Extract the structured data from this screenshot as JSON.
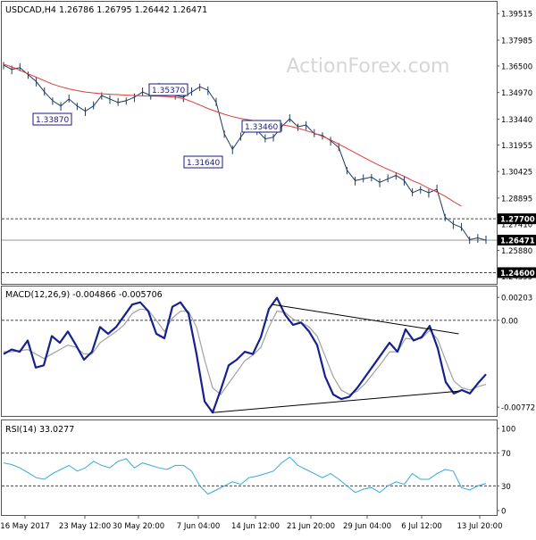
{
  "colors": {
    "price": "#1f3a5f",
    "ma": "#e03a3a",
    "macd": "#16218f",
    "signal": "#a0a0a0",
    "rsi": "#37a9df",
    "axis": "#666666",
    "grid": "#666666",
    "watermark": "#d6d6d6",
    "label_bg": "#ffffff"
  },
  "watermark": "ActionForex.com",
  "chart_data": [
    {
      "type": "line",
      "panel": "price",
      "title": "USDCAD,H4  1.26786 1.26795 1.26442 1.26471",
      "ylim": [
        1.23955,
        1.40195
      ],
      "y_ticks": [
        "1.39515",
        "1.37985",
        "1.36500",
        "1.34970",
        "1.33440",
        "1.31955",
        "1.30425",
        "1.28895",
        "1.27410",
        "1.25880",
        "1.24395"
      ],
      "x_ticks": [
        "16 May 2017",
        "23 May 12:00",
        "30 May 20:00",
        "7 Jun 04:00",
        "14 Jun 12:00",
        "21 Jun 20:00",
        "29 Jun 04:00",
        "6 Jul 12:00",
        "13 Jul 20:00"
      ],
      "last_price": "1.26471",
      "horizontal_levels": [
        {
          "value": 1.277,
          "label": "1.27700",
          "style": "dashed"
        },
        {
          "value": 1.246,
          "label": "1.24600",
          "style": "dashed"
        }
      ],
      "annotations": [
        {
          "text": "1.35370",
          "value": 1.3537
        },
        {
          "text": "1.33870",
          "value": 1.3387
        },
        {
          "text": "1.33460",
          "value": 1.3346
        },
        {
          "text": "1.31640",
          "value": 1.3164
        }
      ],
      "series": [
        {
          "values": [
            1.3655,
            1.363,
            1.364,
            1.36,
            1.356,
            1.35,
            1.345,
            1.342,
            1.346,
            1.342,
            1.339,
            1.342,
            1.348,
            1.346,
            1.344,
            1.345,
            1.347,
            1.35,
            1.348,
            1.353,
            1.351,
            1.348,
            1.347,
            1.35,
            1.353,
            1.351,
            1.344,
            1.326,
            1.317,
            1.324,
            1.33,
            1.328,
            1.323,
            1.324,
            1.33,
            1.3346,
            1.33,
            1.331,
            1.326,
            1.325,
            1.322,
            1.318,
            1.305,
            1.299,
            1.3,
            1.301,
            1.298,
            1.3,
            1.302,
            1.299,
            1.292,
            1.294,
            1.292,
            1.294,
            1.278,
            1.274,
            1.272,
            1.265,
            1.266,
            1.2647
          ]
        },
        {
          "values": [
            1.366,
            1.3645,
            1.3625,
            1.3605,
            1.3585,
            1.3565,
            1.3545,
            1.353,
            1.3518,
            1.3508,
            1.35,
            1.3495,
            1.349,
            1.3487,
            1.3485,
            1.3482,
            1.348,
            1.3478,
            1.3477,
            1.3476,
            1.3474,
            1.347,
            1.3462,
            1.3445,
            1.3425,
            1.3405,
            1.3388,
            1.3372,
            1.3358,
            1.3348,
            1.334,
            1.3333,
            1.3327,
            1.332,
            1.3312,
            1.3303,
            1.3292,
            1.3278,
            1.3263,
            1.3245,
            1.3224,
            1.32,
            1.3175,
            1.315,
            1.3125,
            1.31,
            1.3077,
            1.3055,
            1.3035,
            1.3015,
            1.299,
            1.297,
            1.2945,
            1.2925,
            1.29,
            1.287,
            1.2843
          ]
        }
      ]
    },
    {
      "type": "line",
      "panel": "macd",
      "title": "MACD(12,26,9) -0.004866 -0.005706",
      "ylim": [
        -0.0085,
        0.003
      ],
      "y_ticks": [
        "0.00203",
        "0.00",
        "-0.00772"
      ],
      "series": [
        {
          "values": [
            -0.003,
            -0.0026,
            -0.0028,
            -0.0018,
            -0.0042,
            -0.004,
            -0.0014,
            -0.002,
            -0.001,
            -0.0022,
            -0.0035,
            -0.0028,
            -0.0006,
            -0.0012,
            -0.0006,
            0.0004,
            0.0014,
            0.0016,
            0.0008,
            -0.0012,
            -0.0016,
            0.0012,
            0.0016,
            0.0006,
            -0.003,
            -0.0072,
            -0.0082,
            -0.0062,
            -0.004,
            -0.0035,
            -0.0028,
            -0.003,
            -0.0015,
            0.001,
            0.002,
            0.0005,
            -0.0004,
            -0.0002,
            -0.001,
            -0.0022,
            -0.005,
            -0.0066,
            -0.007,
            -0.0068,
            -0.006,
            -0.005,
            -0.004,
            -0.003,
            -0.002,
            -0.0028,
            -0.0008,
            -0.0018,
            -0.0015,
            -0.0005,
            -0.0025,
            -0.0055,
            -0.0065,
            -0.0062,
            -0.0065,
            -0.0056,
            -0.0048
          ]
        },
        {
          "values": [
            -0.0028,
            -0.0028,
            -0.0027,
            -0.0026,
            -0.003,
            -0.0034,
            -0.003,
            -0.0026,
            -0.0022,
            -0.0024,
            -0.003,
            -0.003,
            -0.002,
            -0.0015,
            -0.001,
            -0.0004,
            0.0006,
            0.001,
            0.0009,
            0.0,
            -0.001,
            0.0002,
            0.0008,
            0.0008,
            -0.0006,
            -0.0035,
            -0.006,
            -0.0066,
            -0.0056,
            -0.0046,
            -0.0036,
            -0.0031,
            -0.0024,
            -0.0006,
            0.0008,
            0.0007,
            0.0001,
            -0.0002,
            -0.0006,
            -0.0014,
            -0.0032,
            -0.005,
            -0.0062,
            -0.0066,
            -0.0063,
            -0.0056,
            -0.0047,
            -0.0038,
            -0.0028,
            -0.0028,
            -0.0016,
            -0.0017,
            -0.0016,
            -0.0009,
            -0.0017,
            -0.0036,
            -0.0054,
            -0.006,
            -0.0062,
            -0.0059,
            -0.0057
          ]
        }
      ],
      "trendlines": [
        {
          "points": [
            [
              0.5467,
              0.0014
            ],
            [
              0.9233,
              -0.0012
            ]
          ]
        },
        {
          "points": [
            [
              0.4267,
              -0.0082
            ],
            [
              0.9233,
              -0.0063
            ]
          ]
        }
      ]
    },
    {
      "type": "line",
      "panel": "rsi",
      "title": "RSI(14) 33.0277",
      "ylim": [
        0,
        100
      ],
      "y_ticks": [
        "100",
        "70",
        "30",
        "0"
      ],
      "levels": [
        70,
        30
      ],
      "series": [
        {
          "values": [
            58,
            56,
            52,
            46,
            40,
            38,
            45,
            50,
            55,
            48,
            52,
            60,
            55,
            52,
            60,
            63,
            52,
            58,
            55,
            52,
            50,
            55,
            55,
            48,
            30,
            20,
            25,
            30,
            35,
            32,
            40,
            42,
            45,
            48,
            58,
            65,
            55,
            50,
            45,
            40,
            45,
            38,
            30,
            22,
            26,
            28,
            22,
            30,
            35,
            32,
            45,
            38,
            38,
            45,
            50,
            48,
            28,
            25,
            30,
            33
          ]
        }
      ]
    }
  ]
}
